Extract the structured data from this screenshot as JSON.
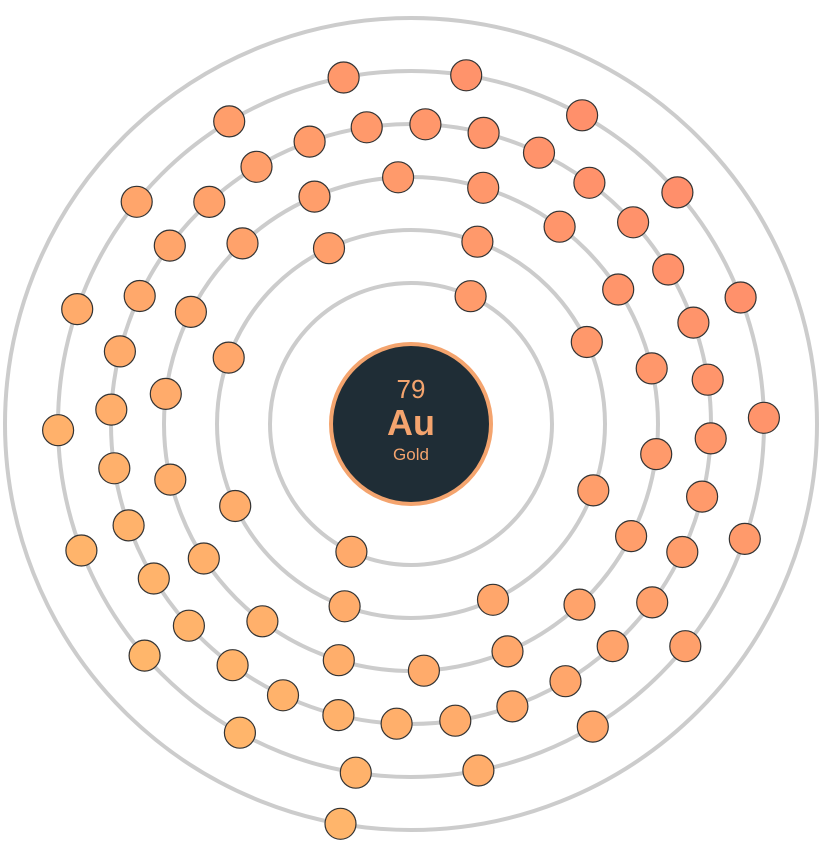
{
  "element": {
    "atomic_number": "79",
    "symbol": "Au",
    "name": "Gold"
  },
  "shells": [
    {
      "electrons": 2,
      "start_angle_deg": 65
    },
    {
      "electrons": 8,
      "start_angle_deg": 70
    },
    {
      "electrons": 18,
      "start_angle_deg": 73
    },
    {
      "electrons": 32,
      "start_angle_deg": 76
    },
    {
      "electrons": 18,
      "start_angle_deg": 81
    },
    {
      "electrons": 1,
      "start_angle_deg": 260
    }
  ],
  "colors": {
    "nucleus_fill": "#1f2d36",
    "nucleus_ring": "#f4a46e",
    "nucleus_text": "#f4a46e",
    "shell_stroke": "#cccccc",
    "electron_warm": "#ff826b",
    "electron_cool": "#ffc36b",
    "electron_stroke": "#333333"
  }
}
